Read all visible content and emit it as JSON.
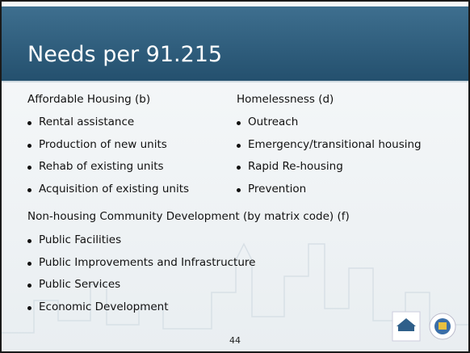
{
  "header": {
    "title": "Needs per 91.215"
  },
  "columns": [
    {
      "heading": "Affordable Housing (b)",
      "items": [
        "Rental assistance",
        "Production of new units",
        "Rehab of existing units",
        "Acquisition of existing units"
      ]
    },
    {
      "heading": "Homelessness (d)",
      "items": [
        "Outreach",
        "Emergency/transitional housing",
        "Rapid Re-housing",
        "Prevention"
      ]
    }
  ],
  "section": {
    "heading": "Non-housing Community Development (by matrix code) (f)",
    "items": [
      "Public Facilities",
      "Public Improvements and Infrastructure",
      "Public Services",
      "Economic Development"
    ]
  },
  "page_number": "44"
}
